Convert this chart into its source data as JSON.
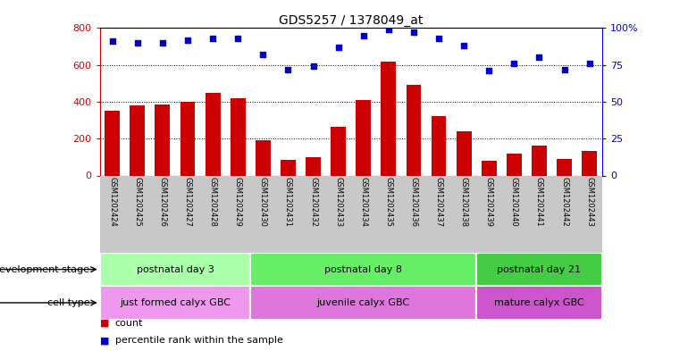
{
  "title": "GDS5257 / 1378049_at",
  "samples": [
    "GSM1202424",
    "GSM1202425",
    "GSM1202426",
    "GSM1202427",
    "GSM1202428",
    "GSM1202429",
    "GSM1202430",
    "GSM1202431",
    "GSM1202432",
    "GSM1202433",
    "GSM1202434",
    "GSM1202435",
    "GSM1202436",
    "GSM1202437",
    "GSM1202438",
    "GSM1202439",
    "GSM1202440",
    "GSM1202441",
    "GSM1202442",
    "GSM1202443"
  ],
  "counts": [
    350,
    380,
    385,
    400,
    450,
    420,
    190,
    85,
    100,
    265,
    410,
    620,
    490,
    320,
    240,
    80,
    120,
    160,
    90,
    135
  ],
  "percentiles": [
    91,
    90,
    90,
    92,
    93,
    93,
    82,
    72,
    74,
    87,
    95,
    99,
    97,
    93,
    88,
    71,
    76,
    80,
    72,
    76
  ],
  "ylim_left": [
    0,
    800
  ],
  "ylim_right": [
    0,
    100
  ],
  "yticks_left": [
    0,
    200,
    400,
    600,
    800
  ],
  "yticks_right": [
    0,
    25,
    50,
    75,
    100
  ],
  "bar_color": "#cc0000",
  "dot_color": "#0000cc",
  "grid_color": "#000000",
  "dev_stage_groups": [
    {
      "label": "postnatal day 3",
      "start": 0,
      "end": 6,
      "color": "#aaffaa"
    },
    {
      "label": "postnatal day 8",
      "start": 6,
      "end": 15,
      "color": "#66ee66"
    },
    {
      "label": "postnatal day 21",
      "start": 15,
      "end": 20,
      "color": "#44cc44"
    }
  ],
  "cell_type_groups": [
    {
      "label": "just formed calyx GBC",
      "start": 0,
      "end": 6,
      "color": "#ee99ee"
    },
    {
      "label": "juvenile calyx GBC",
      "start": 6,
      "end": 15,
      "color": "#dd77dd"
    },
    {
      "label": "mature calyx GBC",
      "start": 15,
      "end": 20,
      "color": "#cc55cc"
    }
  ],
  "dev_stage_label": "development stage",
  "cell_type_label": "cell type",
  "legend_count_label": "count",
  "legend_percentile_label": "percentile rank within the sample",
  "background_color": "#ffffff",
  "tick_bg_color": "#c8c8c8"
}
